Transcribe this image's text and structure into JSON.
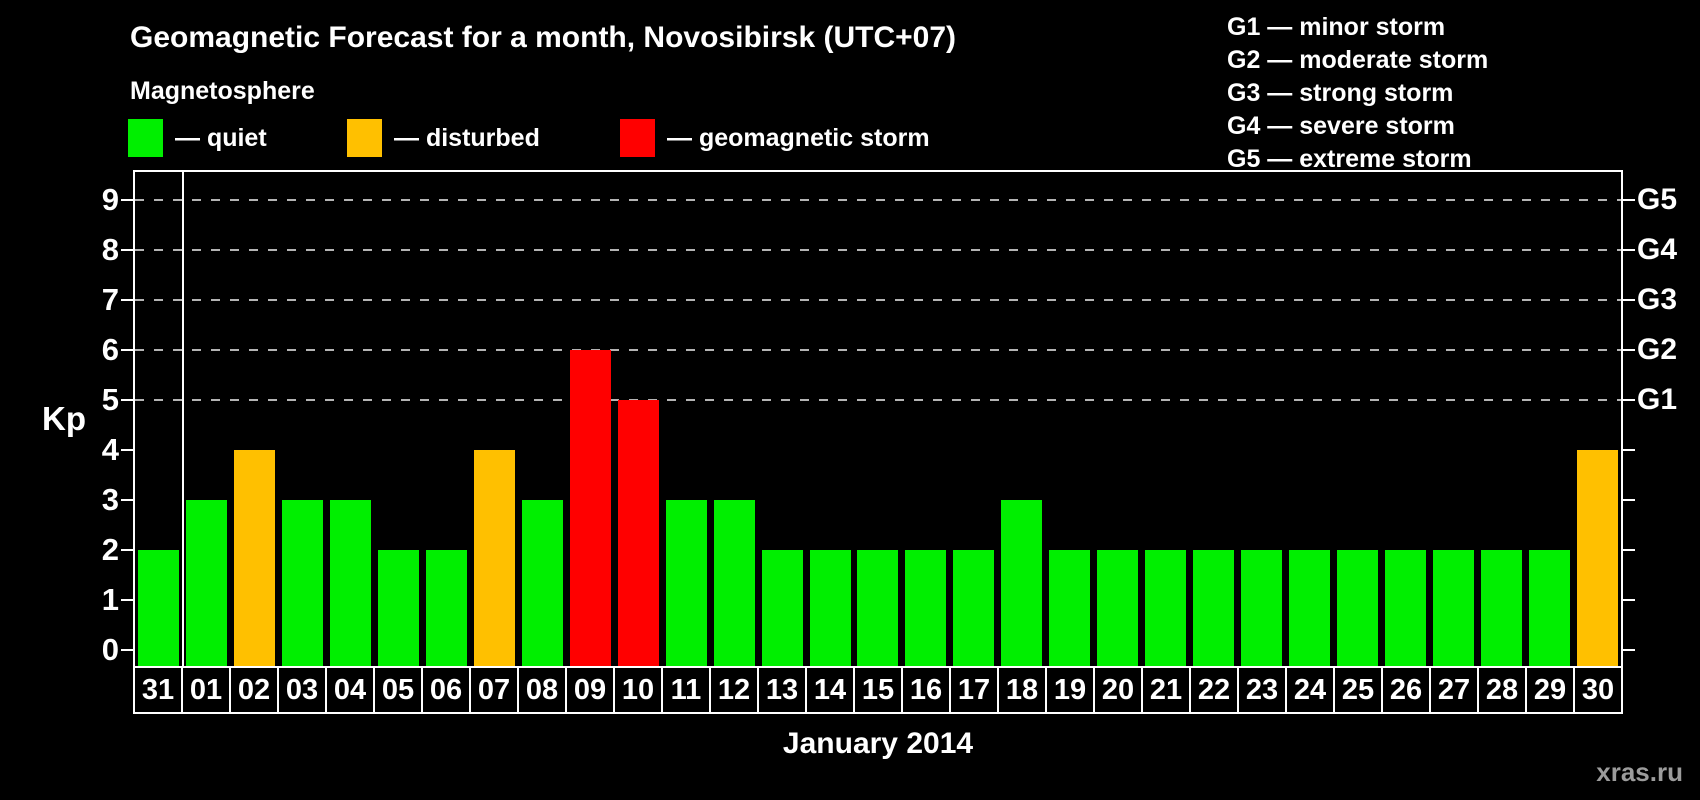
{
  "title": "Geomagnetic Forecast for a month, Novosibirsk (UTC+07)",
  "subtitle": "Magnetosphere",
  "legend": {
    "quiet_label": "— quiet",
    "disturbed_label": "— disturbed",
    "storm_label": "— geomagnetic storm"
  },
  "storm_scale": [
    "G1 — minor storm",
    "G2 — moderate storm",
    "G3 — strong storm",
    "G4 — severe storm",
    "G5 — extreme storm"
  ],
  "axis": {
    "kp_label": "Kp",
    "kp_ticks": [
      "0",
      "1",
      "2",
      "3",
      "4",
      "5",
      "6",
      "7",
      "8",
      "9"
    ],
    "g_labels": [
      {
        "kp": 5,
        "label": "G1"
      },
      {
        "kp": 6,
        "label": "G2"
      },
      {
        "kp": 7,
        "label": "G3"
      },
      {
        "kp": 8,
        "label": "G4"
      },
      {
        "kp": 9,
        "label": "G5"
      }
    ]
  },
  "month_label": "January 2014",
  "watermark": "xras.ru",
  "colors": {
    "quiet": "#00ef00",
    "disturbed": "#ffc000",
    "storm": "#ff0000",
    "gridline": "#b4b4b4",
    "background": "#000000",
    "text": "#ffffff"
  },
  "chart_data": {
    "type": "bar",
    "title": "Geomagnetic Forecast for a month, Novosibirsk (UTC+07)",
    "xlabel": "January 2014",
    "ylabel": "Kp",
    "ylim": [
      0,
      9.5
    ],
    "yticks": [
      0,
      1,
      2,
      3,
      4,
      5,
      6,
      7,
      8,
      9
    ],
    "dashed_gridlines_at": [
      5,
      6,
      7,
      8,
      9
    ],
    "right_axis_labels": {
      "5": "G1",
      "6": "G2",
      "7": "G3",
      "8": "G4",
      "9": "G5"
    },
    "legend_position": "top",
    "categories": [
      "31",
      "01",
      "02",
      "03",
      "04",
      "05",
      "06",
      "07",
      "08",
      "09",
      "10",
      "11",
      "12",
      "13",
      "14",
      "15",
      "16",
      "17",
      "18",
      "19",
      "20",
      "21",
      "22",
      "23",
      "24",
      "25",
      "26",
      "27",
      "28",
      "29",
      "30"
    ],
    "values": [
      2,
      3,
      4,
      3,
      3,
      2,
      2,
      4,
      3,
      6,
      5,
      3,
      3,
      2,
      2,
      2,
      2,
      2,
      3,
      2,
      2,
      2,
      2,
      2,
      2,
      2,
      2,
      2,
      2,
      2,
      4
    ],
    "statuses": [
      "quiet",
      "quiet",
      "disturbed",
      "quiet",
      "quiet",
      "quiet",
      "quiet",
      "disturbed",
      "quiet",
      "storm",
      "storm",
      "quiet",
      "quiet",
      "quiet",
      "quiet",
      "quiet",
      "quiet",
      "quiet",
      "quiet",
      "quiet",
      "quiet",
      "quiet",
      "quiet",
      "quiet",
      "quiet",
      "quiet",
      "quiet",
      "quiet",
      "quiet",
      "quiet",
      "disturbed"
    ]
  }
}
